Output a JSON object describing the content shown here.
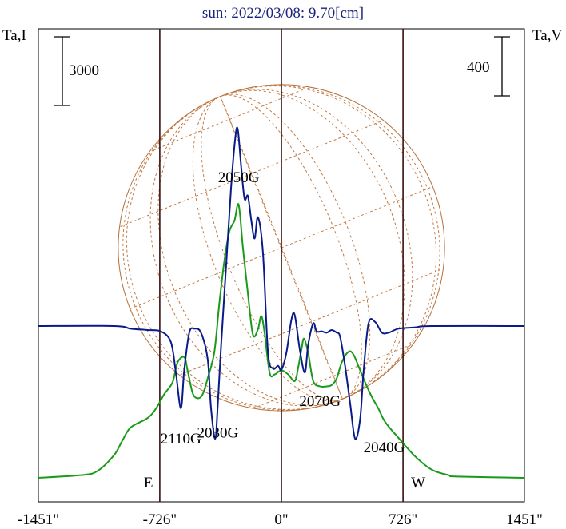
{
  "chart_data": {
    "type": "line",
    "title": "sun: 2022/03/08: 9.70[cm]",
    "left_axis_label": "Ta,I",
    "right_axis_label": "Ta,V",
    "left_scale_bar": "3000",
    "right_scale_bar": "400",
    "x_ticks": [
      "-1451\"",
      "-726\"",
      "0\"",
      "726\"",
      "1451\""
    ],
    "x_tick_values": [
      -1451,
      -726,
      0,
      726,
      1451
    ],
    "xlim": [
      -1451,
      1451
    ],
    "markers": [
      {
        "label": "E",
        "x": -726
      },
      {
        "label": "W",
        "x": 726
      }
    ],
    "center_marker_x": 0,
    "solar_radius_arcsec": 726,
    "annotations": [
      {
        "text": "2050G",
        "x": -255,
        "series": "I"
      },
      {
        "text": "2110G",
        "x": -600,
        "series": "V"
      },
      {
        "text": "2030G",
        "x": -380,
        "series": "V"
      },
      {
        "text": "2070G",
        "x": 135,
        "series": "V"
      },
      {
        "text": "2040G",
        "x": 470,
        "series": "V"
      }
    ],
    "series": [
      {
        "id": "I",
        "color": "#1a9a1a",
        "x": [
          -1451,
          -1200,
          -1100,
          -1000,
          -950,
          -900,
          -800,
          -750,
          -700,
          -650,
          -620,
          -580,
          -560,
          -530,
          -500,
          -470,
          -440,
          -400,
          -370,
          -340,
          -310,
          -280,
          -255,
          -230,
          -200,
          -170,
          -140,
          -120,
          -100,
          -70,
          -40,
          0,
          40,
          80,
          100,
          120,
          135,
          160,
          190,
          230,
          270,
          300,
          330,
          360,
          400,
          430,
          470,
          510,
          540,
          580,
          620,
          700,
          800,
          900,
          1000,
          1050,
          1451
        ],
        "y": [
          0.0,
          0.02,
          0.05,
          0.17,
          0.28,
          0.38,
          0.45,
          0.52,
          0.63,
          0.72,
          0.87,
          0.91,
          0.81,
          0.64,
          0.6,
          0.63,
          0.75,
          0.95,
          1.32,
          1.64,
          1.86,
          1.94,
          2.06,
          1.74,
          1.39,
          1.08,
          1.12,
          1.22,
          1.09,
          0.79,
          0.78,
          0.81,
          0.78,
          0.73,
          0.83,
          0.97,
          1.05,
          0.94,
          0.73,
          0.69,
          0.69,
          0.7,
          0.75,
          0.87,
          0.95,
          0.93,
          0.81,
          0.69,
          0.61,
          0.52,
          0.42,
          0.3,
          0.16,
          0.06,
          0.02,
          0.01,
          0.0
        ]
      },
      {
        "id": "V",
        "color": "#0a1a8a",
        "x": [
          -1451,
          -1000,
          -900,
          -800,
          -720,
          -660,
          -630,
          -600,
          -580,
          -550,
          -520,
          -480,
          -440,
          -420,
          -395,
          -380,
          -360,
          -330,
          -300,
          -275,
          -260,
          -240,
          -220,
          -200,
          -180,
          -160,
          -140,
          -110,
          -80,
          -50,
          -20,
          0,
          30,
          60,
          80,
          110,
          140,
          160,
          190,
          210,
          240,
          270,
          300,
          330,
          350,
          380,
          410,
          440,
          470,
          490,
          520,
          560,
          600,
          640,
          700,
          800,
          900,
          1451
        ],
        "y": [
          0.0,
          0.0,
          -0.02,
          -0.03,
          -0.04,
          -0.12,
          -0.35,
          -0.62,
          -0.33,
          -0.05,
          -0.02,
          -0.05,
          -0.25,
          -0.62,
          -0.85,
          -0.6,
          -0.15,
          0.45,
          1.05,
          1.42,
          1.48,
          1.2,
          0.96,
          0.98,
          0.8,
          0.66,
          0.82,
          0.55,
          -0.2,
          -0.32,
          -0.3,
          -0.33,
          -0.2,
          0.05,
          0.08,
          -0.18,
          -0.35,
          -0.14,
          0.02,
          -0.04,
          -0.04,
          -0.05,
          -0.03,
          -0.05,
          -0.08,
          -0.3,
          -0.58,
          -0.85,
          -0.7,
          -0.35,
          0.02,
          0.03,
          -0.05,
          -0.05,
          -0.02,
          -0.01,
          0.0,
          0.0
        ]
      }
    ]
  }
}
